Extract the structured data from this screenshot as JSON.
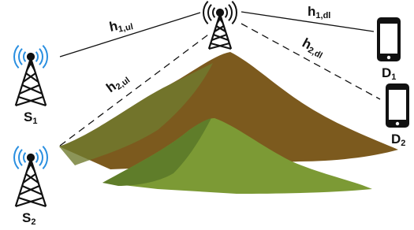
{
  "links": [
    {
      "base": "h",
      "sub": "1,ul"
    },
    {
      "base": "h",
      "sub": "2,ul"
    },
    {
      "base": "h",
      "sub": "1,dl"
    },
    {
      "base": "h",
      "sub": "2,dl"
    }
  ],
  "nodes": [
    {
      "base": "S",
      "sub": "1"
    },
    {
      "base": "S",
      "sub": "2"
    },
    {
      "base": "D",
      "sub": "1"
    },
    {
      "base": "D",
      "sub": "2"
    }
  ]
}
